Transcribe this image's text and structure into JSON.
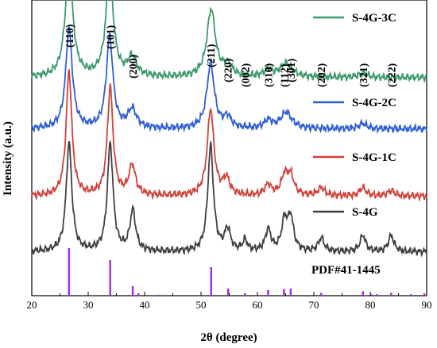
{
  "chart_data": {
    "type": "line",
    "xlabel": "2θ (degree)",
    "ylabel": "Intensity (a.u.)",
    "xlim": [
      20,
      90
    ],
    "x_ticks": [
      20,
      30,
      40,
      50,
      60,
      70,
      80,
      90
    ],
    "y_ticks_shown": false,
    "legend_placement": "right of each trace",
    "series": [
      {
        "name": "S-4G",
        "color": "#404040",
        "baseline": 0.56,
        "peaks": [
          [
            26.6,
            2.0,
            0.6
          ],
          [
            33.9,
            2.0,
            0.6
          ],
          [
            37.9,
            0.75,
            0.6
          ],
          [
            51.7,
            1.95,
            0.6
          ],
          [
            54.7,
            0.4,
            0.6
          ],
          [
            57.8,
            0.2,
            0.5
          ],
          [
            61.9,
            0.4,
            0.6
          ],
          [
            64.8,
            0.55,
            0.6
          ],
          [
            65.9,
            0.6,
            0.6
          ],
          [
            71.3,
            0.25,
            0.6
          ],
          [
            78.7,
            0.3,
            0.6
          ],
          [
            83.7,
            0.3,
            0.6
          ]
        ]
      },
      {
        "name": "S-4G-1C",
        "color": "#d0423a",
        "baseline": 1.59,
        "peaks": [
          [
            26.6,
            2.3,
            0.6
          ],
          [
            33.9,
            2.0,
            0.6
          ],
          [
            37.8,
            0.55,
            0.7
          ],
          [
            51.7,
            1.6,
            0.7
          ],
          [
            54.5,
            0.3,
            0.7
          ],
          [
            61.9,
            0.2,
            0.7
          ],
          [
            64.8,
            0.35,
            0.7
          ],
          [
            65.9,
            0.35,
            0.7
          ],
          [
            71.3,
            0.15,
            0.7
          ],
          [
            78.7,
            0.15,
            0.7
          ],
          [
            83.7,
            0.1,
            0.7
          ]
        ]
      },
      {
        "name": "S-4G-2C",
        "color": "#2f5fd6",
        "baseline": 2.83,
        "peaks": [
          [
            26.6,
            1.85,
            0.7
          ],
          [
            33.8,
            1.7,
            0.7
          ],
          [
            37.8,
            0.35,
            0.9
          ],
          [
            51.7,
            1.2,
            0.8
          ],
          [
            54.7,
            0.2,
            0.8
          ],
          [
            61.9,
            0.15,
            0.8
          ],
          [
            65.1,
            0.3,
            1.2
          ],
          [
            78.7,
            0.1,
            0.8
          ]
        ]
      },
      {
        "name": "S-4G-3C",
        "color": "#3d9a6c",
        "baseline": 3.78,
        "peaks": [
          [
            26.6,
            2.05,
            0.8
          ],
          [
            33.8,
            1.88,
            0.8
          ],
          [
            37.8,
            0.35,
            0.9
          ],
          [
            51.8,
            1.25,
            0.9
          ],
          [
            54.7,
            0.2,
            0.9
          ],
          [
            61.9,
            0.12,
            0.9
          ],
          [
            65.1,
            0.25,
            1.3
          ],
          [
            78.7,
            0.08,
            0.9
          ]
        ]
      }
    ],
    "reference": {
      "name": "PDF#41-1445",
      "color": "#a030e0",
      "lines": [
        [
          26.6,
          100
        ],
        [
          33.9,
          75
        ],
        [
          37.9,
          20
        ],
        [
          38.9,
          5
        ],
        [
          42.6,
          2
        ],
        [
          51.8,
          60
        ],
        [
          54.8,
          15
        ],
        [
          57.8,
          5
        ],
        [
          61.9,
          12
        ],
        [
          64.7,
          14
        ],
        [
          65.9,
          15
        ],
        [
          71.3,
          6
        ],
        [
          78.7,
          9
        ],
        [
          80.2,
          3
        ],
        [
          81.2,
          3
        ],
        [
          83.7,
          6
        ],
        [
          87.2,
          3
        ],
        [
          89.6,
          5
        ]
      ]
    },
    "annotations": [
      {
        "text": "(110)",
        "x": 26.6
      },
      {
        "text": "(101)",
        "x": 33.9
      },
      {
        "text": "(200)",
        "x": 37.9
      },
      {
        "text": "(211)",
        "x": 51.7
      },
      {
        "text": "(220)",
        "x": 54.7
      },
      {
        "text": "(002)",
        "x": 57.8
      },
      {
        "text": "(310)",
        "x": 61.9
      },
      {
        "text": "(112)",
        "x": 64.7
      },
      {
        "text": "(301)",
        "x": 65.9
      },
      {
        "text": "(202)",
        "x": 71.3
      },
      {
        "text": "(321)",
        "x": 78.7
      },
      {
        "text": "(222)",
        "x": 83.7
      }
    ]
  }
}
